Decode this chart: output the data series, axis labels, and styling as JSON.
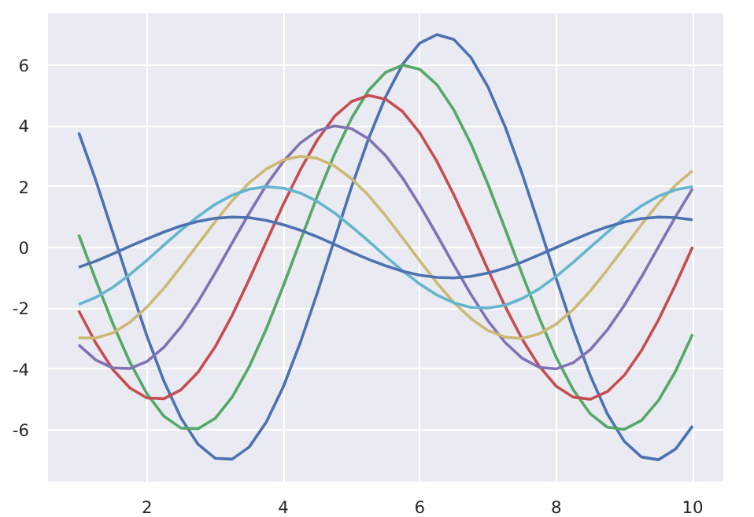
{
  "chart_data": {
    "type": "line",
    "x": [
      1,
      1.25,
      1.5,
      1.75,
      2,
      2.25,
      2.5,
      2.75,
      3,
      3.25,
      3.5,
      3.75,
      4,
      4.25,
      4.5,
      4.75,
      5,
      5.25,
      5.5,
      5.75,
      6,
      6.25,
      6.5,
      6.75,
      7,
      7.25,
      7.5,
      7.75,
      8,
      8.25,
      8.5,
      8.75,
      9,
      9.25,
      9.5,
      9.75,
      10
    ],
    "series": [
      {
        "color": "#4c72b0",
        "values": [
          3.78,
          2.21,
          0.49,
          -1.25,
          -2.91,
          -4.4,
          -5.61,
          -6.47,
          -6.93,
          -6.96,
          -6.56,
          -5.74,
          -4.58,
          -3.12,
          -1.48,
          0.26,
          1.99,
          3.58,
          4.96,
          6.03,
          6.72,
          7.0,
          6.84,
          6.25,
          5.28,
          3.98,
          2.43,
          0.73,
          -1.02,
          -2.7,
          -4.21,
          -5.47,
          -6.38,
          -6.89,
          -6.98,
          -6.63,
          -5.87
        ]
      },
      {
        "color": "#55a868",
        "values": [
          0.42,
          -1.07,
          -2.5,
          -3.77,
          -4.81,
          -5.55,
          -5.94,
          -5.96,
          -5.62,
          -4.92,
          -3.92,
          -2.68,
          -1.26,
          0.23,
          1.7,
          3.07,
          4.25,
          5.17,
          5.76,
          6.0,
          5.86,
          5.36,
          4.52,
          3.41,
          2.08,
          0.62,
          -0.87,
          -2.31,
          -3.61,
          -4.68,
          -5.47,
          -5.91,
          -5.98,
          -5.69,
          -5.03,
          -4.07,
          -2.85
        ]
      },
      {
        "color": "#c44e52",
        "values": [
          -2.08,
          -3.14,
          -4.01,
          -4.62,
          -4.95,
          -4.97,
          -4.68,
          -4.1,
          -3.27,
          -2.23,
          -1.05,
          0.19,
          1.42,
          2.56,
          3.54,
          4.31,
          4.8,
          5.0,
          4.88,
          4.47,
          3.77,
          2.84,
          1.73,
          0.52,
          -0.73,
          -1.93,
          -3.01,
          -3.9,
          -4.56,
          -4.92,
          -4.99,
          -4.74,
          -4.2,
          -3.39,
          -2.38,
          -1.22,
          0.02
        ]
      },
      {
        "color": "#8172b2",
        "values": [
          -3.2,
          -3.7,
          -3.96,
          -3.98,
          -3.75,
          -3.28,
          -2.61,
          -1.78,
          -0.84,
          0.15,
          1.13,
          2.05,
          2.83,
          3.44,
          3.84,
          4.0,
          3.91,
          3.57,
          3.02,
          2.28,
          1.39,
          0.42,
          -0.58,
          -1.54,
          -2.41,
          -3.12,
          -3.64,
          -3.94,
          -3.99,
          -3.79,
          -3.36,
          -2.71,
          -1.9,
          -0.97,
          0.02,
          1.01,
          1.94
        ]
      },
      {
        "color": "#ccb974",
        "values": [
          -2.97,
          -2.98,
          -2.81,
          -2.46,
          -1.96,
          -1.34,
          -0.63,
          0.11,
          0.85,
          1.54,
          2.13,
          2.58,
          2.88,
          3.0,
          2.93,
          2.68,
          2.26,
          1.71,
          1.04,
          0.31,
          -0.44,
          -1.16,
          -1.81,
          -2.34,
          -2.73,
          -2.95,
          -2.99,
          -2.84,
          -2.52,
          -2.04,
          -1.43,
          -0.73,
          0.01,
          0.75,
          1.45,
          2.05,
          2.53
        ]
      },
      {
        "color": "#64b5cd",
        "values": [
          -1.87,
          -1.64,
          -1.31,
          -0.89,
          -0.42,
          0.08,
          0.57,
          1.02,
          1.42,
          1.72,
          1.92,
          2.0,
          1.95,
          1.79,
          1.51,
          1.14,
          0.69,
          0.21,
          -0.29,
          -0.77,
          -1.2,
          -1.56,
          -1.82,
          -1.97,
          -1.99,
          -1.9,
          -1.68,
          -1.36,
          -0.95,
          -0.49,
          0.01,
          0.5,
          0.97,
          1.37,
          1.69,
          1.9,
          2.0
        ]
      },
      {
        "color": "#4c72b0",
        "values": [
          -0.65,
          -0.45,
          -0.21,
          0.04,
          0.28,
          0.51,
          0.71,
          0.86,
          0.96,
          1.0,
          0.98,
          0.89,
          0.75,
          0.57,
          0.35,
          0.1,
          -0.15,
          -0.39,
          -0.6,
          -0.78,
          -0.91,
          -0.98,
          -1.0,
          -0.95,
          -0.84,
          -0.68,
          -0.48,
          -0.24,
          0.0,
          0.25,
          0.48,
          0.68,
          0.84,
          0.95,
          1.0,
          0.98,
          0.91
        ]
      }
    ],
    "xlim": [
      0.55,
      10.45
    ],
    "ylim": [
      -7.7,
      7.7
    ],
    "xticks": [
      2,
      4,
      6,
      8,
      10
    ],
    "yticks": [
      -6,
      -4,
      -2,
      0,
      2,
      4,
      6
    ],
    "grid": true
  }
}
